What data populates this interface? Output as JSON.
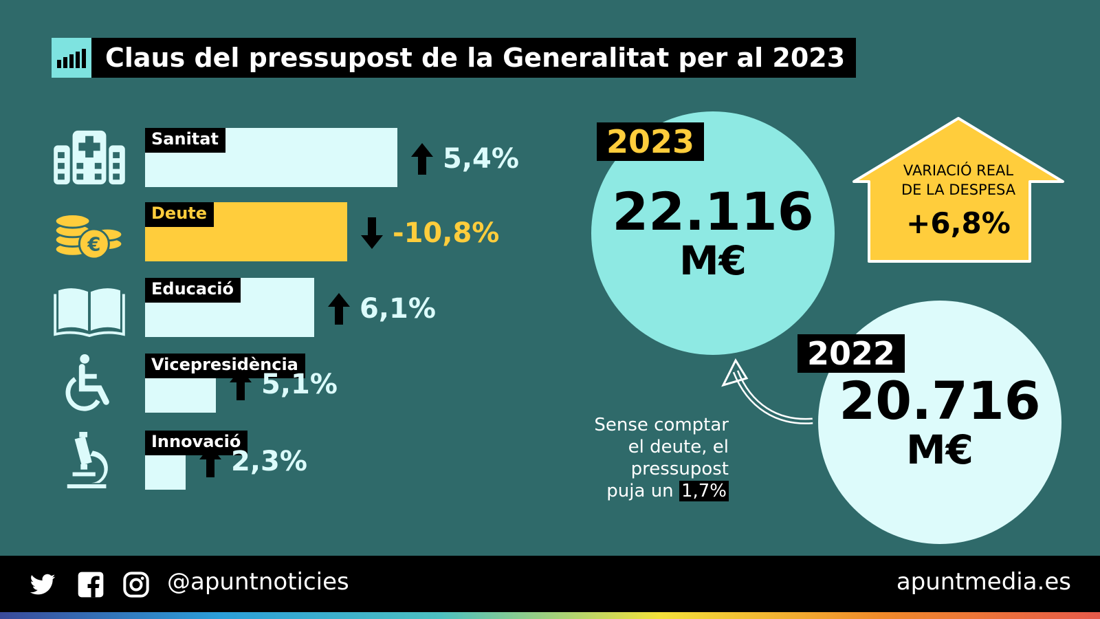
{
  "title": "Claus del pressupost de la Generalitat per al 2023",
  "colors": {
    "background": "#2f6a6a",
    "bar": "#dcfbfb",
    "debt": "#ffcd3c",
    "circle_2023": "#8ee9e3",
    "circle_2022": "#ddfbfb"
  },
  "chart_data": {
    "type": "bar",
    "orientation": "horizontal",
    "categories": [
      "Sanitat",
      "Deute",
      "Educació",
      "Vicepresidència",
      "Innovació"
    ],
    "icons": [
      "hospital-icon",
      "coins-euro-icon",
      "book-icon",
      "wheelchair-icon",
      "microscope-icon"
    ],
    "relative_bar_length": [
      1.0,
      0.8,
      0.67,
      0.28,
      0.16
    ],
    "change_labels": [
      "5,4%",
      "-10,8%",
      "6,1%",
      "5,1%",
      "2,3%"
    ],
    "change_values": [
      5.4,
      -10.8,
      6.1,
      5.1,
      2.3
    ],
    "direction": [
      "up",
      "down",
      "up",
      "up",
      "up"
    ]
  },
  "budget_2023": {
    "year": "2023",
    "amount": "22.116",
    "unit": "M€"
  },
  "budget_2022": {
    "year": "2022",
    "amount": "20.716",
    "unit": "M€"
  },
  "real_variation": {
    "line1": "VARIACIÓ REAL",
    "line2": "DE LA DESPESA",
    "value": "+6,8%"
  },
  "note": {
    "line1": "Sense comptar",
    "line2": "el deute, el",
    "line3": "pressupost",
    "line4": "puja un",
    "highlight": "1,7%"
  },
  "footer": {
    "handle": "@apuntnoticies",
    "site": "apuntmedia.es"
  }
}
